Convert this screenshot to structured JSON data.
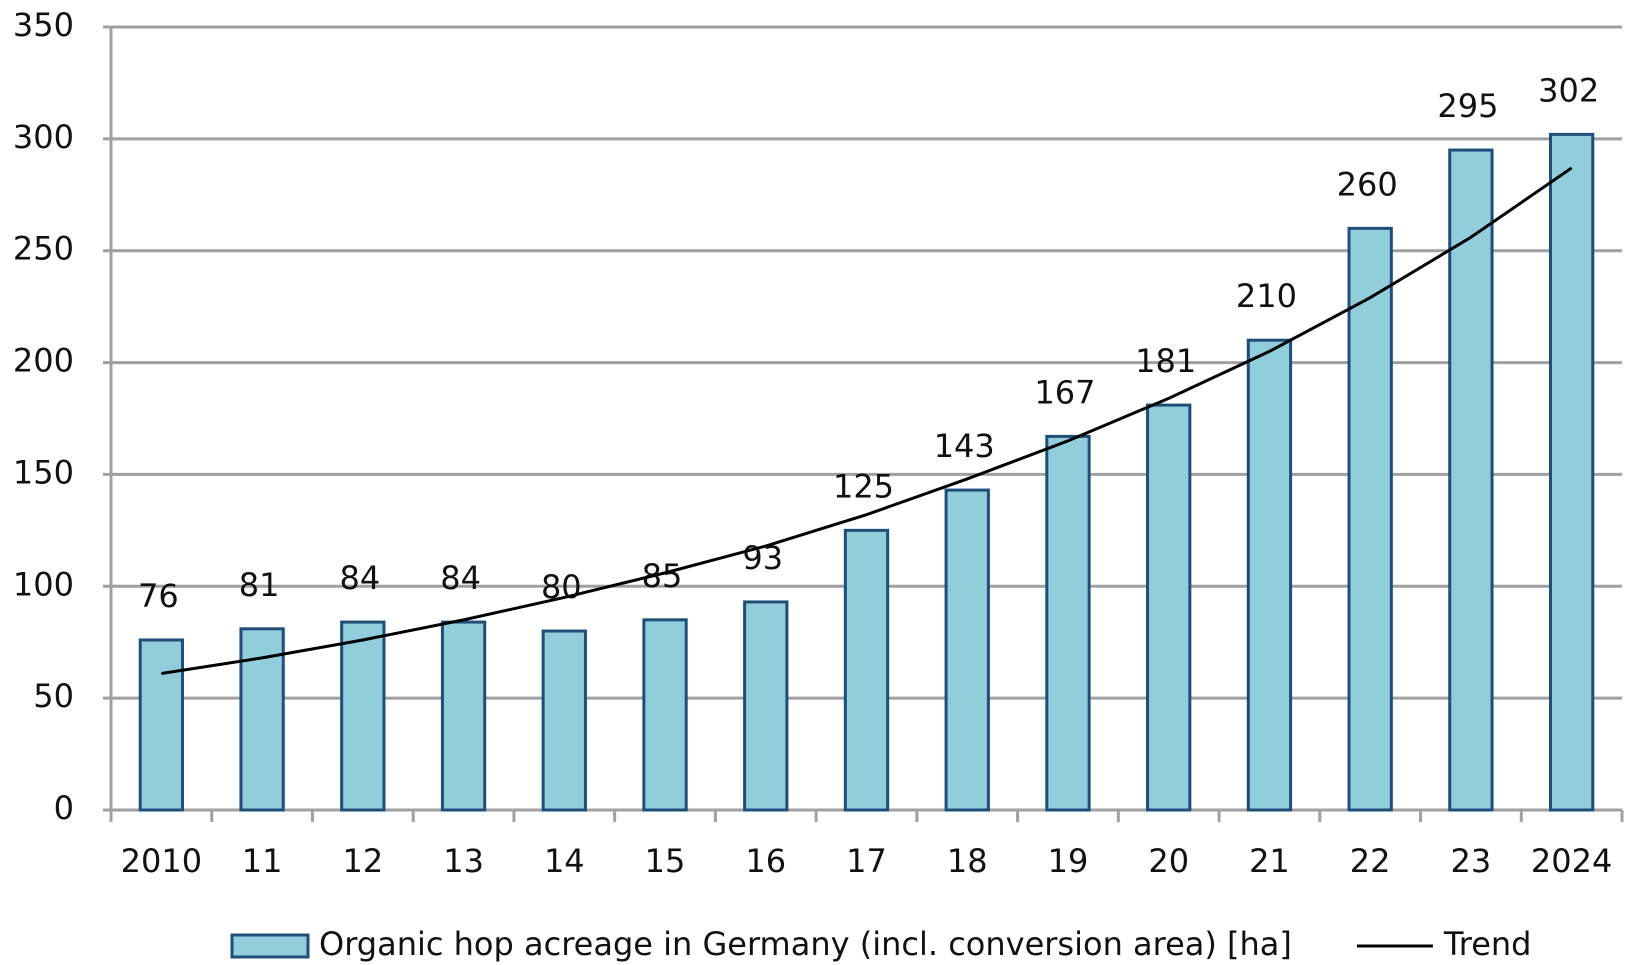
{
  "chart_data": {
    "type": "bar",
    "categories": [
      "2010",
      "11",
      "12",
      "13",
      "14",
      "15",
      "16",
      "17",
      "18",
      "19",
      "20",
      "21",
      "22",
      "23",
      "2024"
    ],
    "series": [
      {
        "name": "Organic hop acreage in Germany (incl. conversion area) [ha]",
        "type": "bar",
        "color": "#92cddc",
        "edge_color": "#1f4e79",
        "values": [
          76,
          81,
          84,
          84,
          80,
          85,
          93,
          125,
          143,
          167,
          181,
          210,
          260,
          295,
          302
        ]
      },
      {
        "name": "Trend",
        "type": "line",
        "color": "#000000",
        "values": [
          61,
          68,
          76,
          85,
          95,
          106,
          118,
          132,
          148,
          165,
          184,
          205,
          229,
          256,
          287
        ]
      }
    ],
    "ylim": [
      0,
      350
    ],
    "yticks": [
      0,
      50,
      100,
      150,
      200,
      250,
      300,
      350
    ],
    "grid": true,
    "legend": "bottom"
  }
}
